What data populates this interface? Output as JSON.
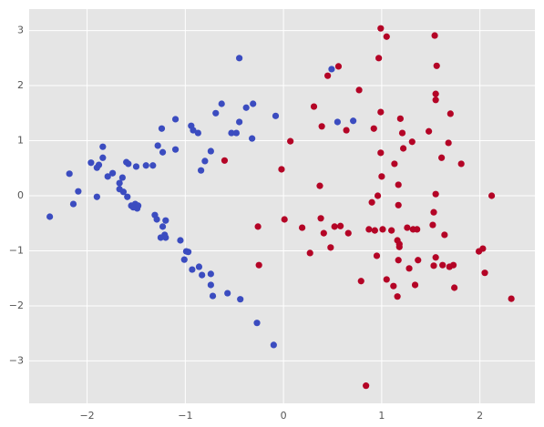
{
  "chart_data": {
    "type": "scatter",
    "xlim": [
      -2.59,
      2.56
    ],
    "ylim": [
      -3.77,
      3.39
    ],
    "xticks": [
      {
        "value": -2,
        "label": "−2"
      },
      {
        "value": -1,
        "label": "−1"
      },
      0,
      1,
      2
    ],
    "yticks": [
      {
        "value": -3,
        "label": "−3"
      },
      {
        "value": -2,
        "label": "−2"
      },
      {
        "value": -1,
        "label": "−1"
      },
      0,
      1,
      2,
      3
    ],
    "grid": true,
    "series": [
      {
        "color": "#3b4cc0",
        "x": [
          -2.38,
          -2.18,
          -2.14,
          -2.09,
          -1.96,
          -1.9,
          -1.9,
          -1.88,
          -1.84,
          -1.84,
          -1.79,
          -1.74,
          -1.67,
          -1.67,
          -1.64,
          -1.63,
          -1.6,
          -1.58,
          -1.59,
          -1.55,
          -1.51,
          -1.49,
          -1.53,
          -1.5,
          -1.48,
          -1.4,
          -1.33,
          -1.31,
          -1.29,
          -1.28,
          -1.24,
          -1.23,
          -1.23,
          -1.21,
          -1.25,
          -1.2,
          -1.2,
          -1.1,
          -1.1,
          -1.05,
          -0.99,
          -0.97,
          -1.01,
          -0.94,
          -0.92,
          -0.87,
          -0.93,
          -0.86,
          -0.84,
          -0.8,
          -0.83,
          -0.74,
          -0.74,
          -0.74,
          -0.72,
          -0.69,
          -0.63,
          -0.57,
          -0.53,
          -0.48,
          -0.45,
          -0.45,
          -0.44,
          -0.38,
          -0.32,
          -0.31,
          -0.27,
          -0.1,
          -0.08,
          0.49,
          0.55,
          0.71
        ],
        "y": [
          -0.38,
          0.4,
          -0.15,
          0.08,
          0.6,
          -0.02,
          0.51,
          0.56,
          0.69,
          0.89,
          0.35,
          0.41,
          0.23,
          0.12,
          0.33,
          0.07,
          0.61,
          0.58,
          -0.02,
          -0.18,
          -0.15,
          -0.23,
          -0.21,
          0.53,
          -0.18,
          0.55,
          0.55,
          -0.35,
          -0.43,
          0.91,
          1.22,
          -0.56,
          0.79,
          -0.71,
          -0.76,
          -0.76,
          -0.45,
          1.39,
          0.84,
          -0.81,
          -1.01,
          -1.02,
          -1.16,
          1.27,
          1.19,
          1.14,
          -1.34,
          -1.29,
          0.46,
          0.63,
          -1.44,
          0.81,
          -1.42,
          -1.62,
          -1.82,
          1.5,
          1.67,
          -1.77,
          1.14,
          1.14,
          1.34,
          2.5,
          -1.88,
          1.6,
          1.04,
          1.67,
          -2.31,
          -2.71,
          1.45,
          2.3,
          1.34,
          1.36
        ]
      },
      {
        "color": "#b40426",
        "x": [
          -0.6,
          -0.26,
          -0.25,
          -0.02,
          0.01,
          0.07,
          0.19,
          0.27,
          0.31,
          0.37,
          0.38,
          0.39,
          0.41,
          0.45,
          0.48,
          0.52,
          0.56,
          0.58,
          0.64,
          0.66,
          0.77,
          0.79,
          0.84,
          0.87,
          0.9,
          0.92,
          0.93,
          0.95,
          0.96,
          0.97,
          0.99,
          0.99,
          0.99,
          1.0,
          1.01,
          1.05,
          1.05,
          1.1,
          1.12,
          1.13,
          1.16,
          1.16,
          1.17,
          1.17,
          1.17,
          1.18,
          1.18,
          1.19,
          1.21,
          1.22,
          1.26,
          1.28,
          1.31,
          1.32,
          1.34,
          1.36,
          1.37,
          1.48,
          1.52,
          1.53,
          1.53,
          1.54,
          1.55,
          1.55,
          1.55,
          1.55,
          1.56,
          1.61,
          1.62,
          1.64,
          1.69,
          1.68,
          1.7,
          1.73,
          1.74,
          1.81,
          1.99,
          2.03,
          2.05,
          2.12,
          2.32
        ],
        "y": [
          0.64,
          -0.56,
          -1.26,
          0.48,
          -0.43,
          0.99,
          -0.58,
          -1.04,
          1.62,
          0.18,
          -0.41,
          1.26,
          -0.68,
          2.18,
          -0.94,
          -0.56,
          2.35,
          -0.55,
          1.19,
          -0.68,
          1.92,
          -1.55,
          -3.45,
          -0.61,
          -0.12,
          1.22,
          -0.63,
          -1.09,
          0.0,
          2.5,
          3.04,
          0.78,
          1.52,
          0.35,
          -0.61,
          2.89,
          -1.52,
          -0.63,
          -1.64,
          0.58,
          -0.81,
          -1.83,
          -1.17,
          -0.17,
          0.2,
          -0.93,
          -0.88,
          1.4,
          1.14,
          0.86,
          -0.58,
          -1.32,
          0.98,
          -0.61,
          -1.62,
          -0.61,
          -1.17,
          1.17,
          -0.53,
          -0.3,
          -1.27,
          2.91,
          1.85,
          1.74,
          -1.12,
          0.03,
          2.36,
          0.69,
          -1.26,
          -0.71,
          -1.29,
          0.96,
          1.49,
          -1.26,
          -1.67,
          0.58,
          -1.01,
          -0.96,
          -1.4,
          0.0,
          -1.87
        ]
      }
    ]
  }
}
